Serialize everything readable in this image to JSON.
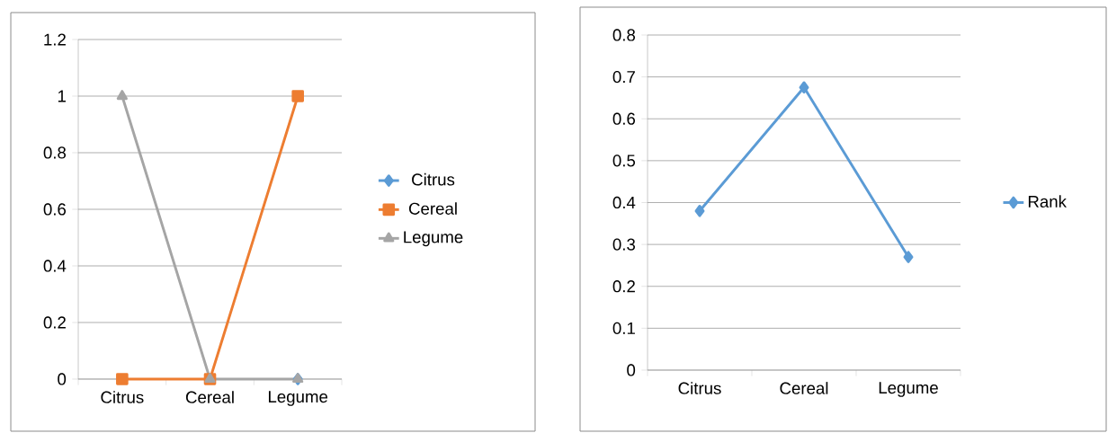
{
  "chart_data": [
    {
      "type": "line",
      "categories": [
        "Citrus",
        "Cereal",
        "Legume"
      ],
      "series": [
        {
          "name": "Citrus",
          "color": "#5b9bd5",
          "marker": "diamond",
          "values": [
            null,
            null,
            0
          ]
        },
        {
          "name": "Cereal",
          "color": "#ed7d31",
          "marker": "square",
          "values": [
            0,
            0,
            1
          ]
        },
        {
          "name": "Legume",
          "color": "#a5a5a5",
          "marker": "triangle",
          "values": [
            1,
            0,
            0
          ]
        }
      ],
      "ylim": [
        0,
        1.2
      ],
      "yticks": [
        0,
        0.2,
        0.4,
        0.6,
        0.8,
        1,
        1.2
      ],
      "grid": "y",
      "legend": "right"
    },
    {
      "type": "line",
      "categories": [
        "Citrus",
        "Cereal",
        "Legume"
      ],
      "series": [
        {
          "name": "Rank",
          "color": "#5b9bd5",
          "marker": "diamond",
          "values": [
            0.38,
            0.675,
            0.27
          ]
        }
      ],
      "ylim": [
        0,
        0.8
      ],
      "yticks": [
        0,
        0.1,
        0.2,
        0.3,
        0.4,
        0.5,
        0.6,
        0.7,
        0.8
      ],
      "grid": "y",
      "legend": "right"
    }
  ]
}
